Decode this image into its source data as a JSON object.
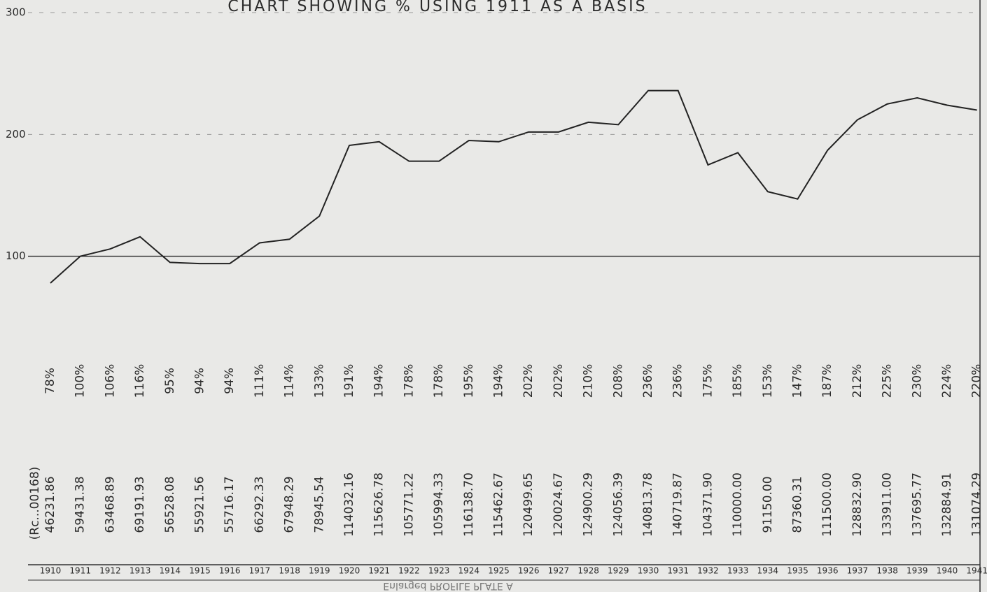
{
  "chart_data": {
    "type": "line",
    "title": "CHART SHOWING % USING 1911 AS A BASIS",
    "categories": [
      "1910",
      "1911",
      "1912",
      "1913",
      "1914",
      "1915",
      "1916",
      "1917",
      "1918",
      "1919",
      "1920",
      "1921",
      "1922",
      "1923",
      "1924",
      "1925",
      "1926",
      "1927",
      "1928",
      "1929",
      "1930",
      "1931",
      "1932",
      "1933",
      "1934",
      "1935",
      "1936",
      "1937",
      "1938",
      "1939",
      "1940",
      "1941"
    ],
    "values": [
      78,
      100,
      106,
      116,
      95,
      94,
      94,
      111,
      114,
      133,
      191,
      194,
      178,
      178,
      195,
      194,
      202,
      202,
      210,
      208,
      236,
      236,
      175,
      185,
      153,
      147,
      187,
      212,
      225,
      230,
      224,
      220
    ],
    "value_labels": [
      "78%",
      "100%",
      "106%",
      "116%",
      "95%",
      "94%",
      "94%",
      "111%",
      "114%",
      "133%",
      "191%",
      "194%",
      "178%",
      "178%",
      "195%",
      "194%",
      "202%",
      "202%",
      "210%",
      "208%",
      "236%",
      "236%",
      "175%",
      "185%",
      "153%",
      "147%",
      "187%",
      "212%",
      "225%",
      "230%",
      "224%",
      "220%"
    ],
    "receipts_label": "(Rc...00168)",
    "receipts": [
      "46231.86",
      "59431.38",
      "63468.89",
      "69191.93",
      "56528.08",
      "55921.56",
      "55716.17",
      "66292.33",
      "67948.29",
      "78945.54",
      "114032.16",
      "115626.78",
      "105771.22",
      "105994.33",
      "116138.70",
      "115462.67",
      "120499.65",
      "120024.67",
      "124900.29",
      "124056.39",
      "140813.78",
      "140719.87",
      "104371.90",
      "110000.00",
      "91150.00",
      "87360.31",
      "111500.00",
      "128832.90",
      "133911.00",
      "137695.77",
      "132884.91",
      "131074.29"
    ],
    "color": "#222222",
    "ylim": [
      0,
      300
    ],
    "yticks": [
      100,
      200,
      300
    ],
    "grid": true,
    "footer": "Enlarged PROFILE PLATE A"
  }
}
